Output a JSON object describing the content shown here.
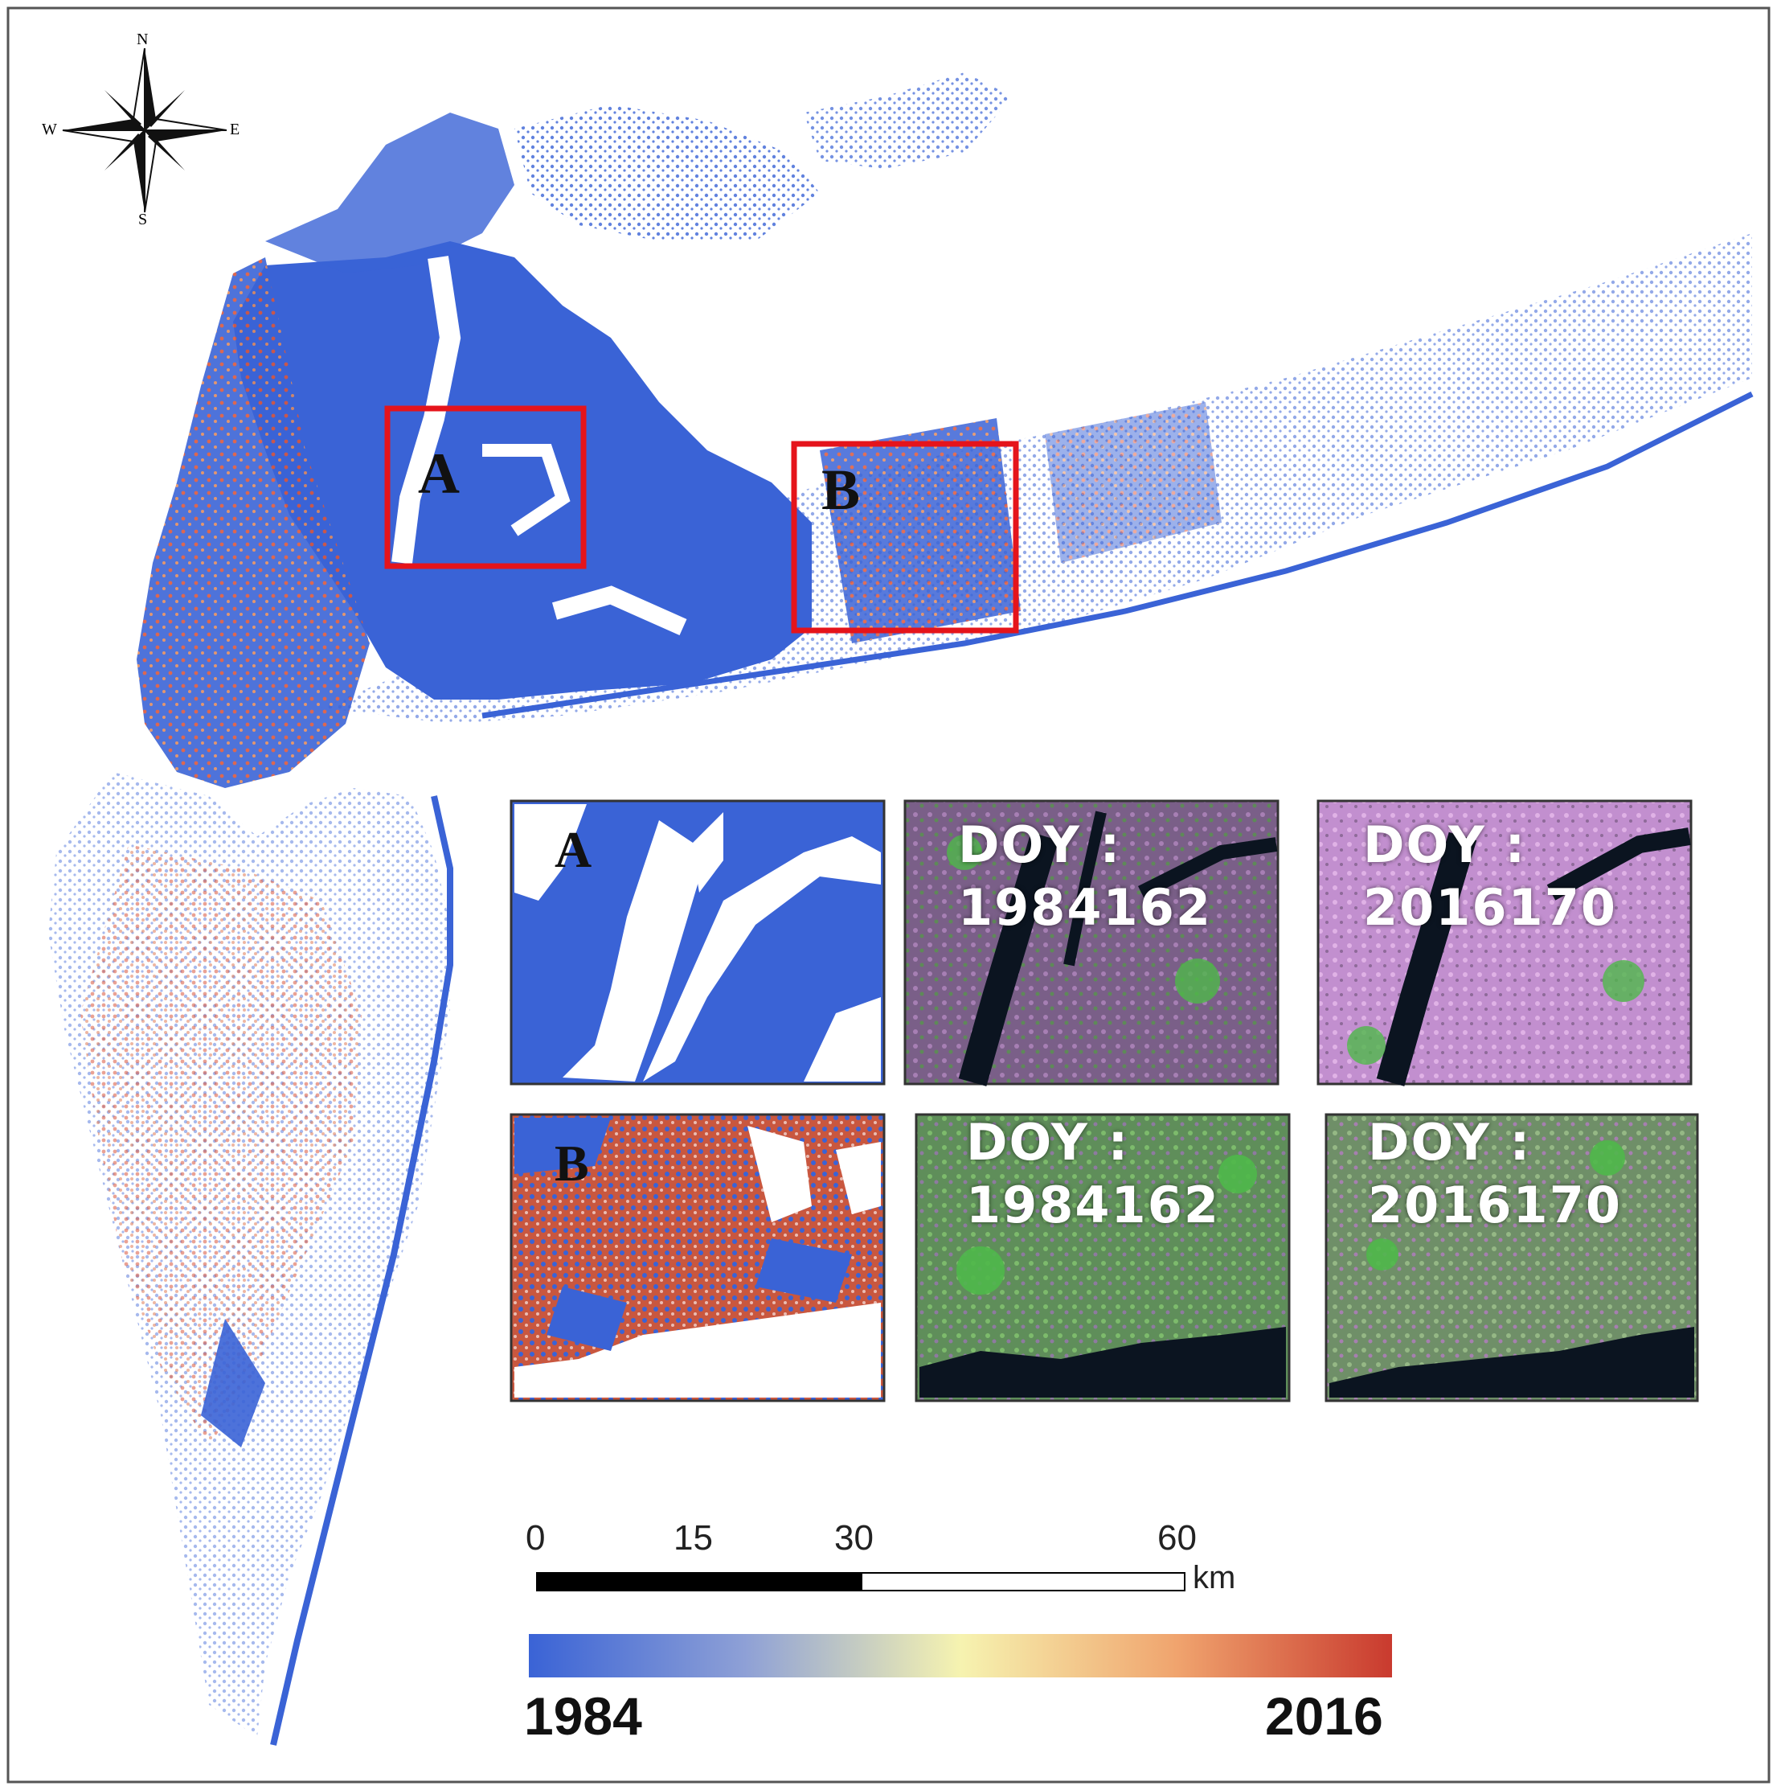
{
  "compass": {
    "north": "N",
    "south": "S",
    "east": "E",
    "west": "W"
  },
  "regions": {
    "a_label": "A",
    "b_label": "B",
    "box_color": "#e5141b"
  },
  "insets": {
    "a": {
      "label": "A",
      "early": {
        "doy_label": "DOY :",
        "doy_value": "1984162"
      },
      "late": {
        "doy_label": "DOY :",
        "doy_value": "2016170"
      }
    },
    "b": {
      "label": "B",
      "early": {
        "doy_label": "DOY :",
        "doy_value": "1984162"
      },
      "late": {
        "doy_label": "DOY :",
        "doy_value": "2016170"
      }
    }
  },
  "scale_bar": {
    "ticks": [
      "0",
      "15",
      "30",
      "60"
    ],
    "unit": "km"
  },
  "legend": {
    "min_label": "1984",
    "max_label": "2016",
    "colors": [
      "#3a63d6",
      "#8ea0d6",
      "#f6f3b0",
      "#f0a46e",
      "#c93a2e"
    ]
  },
  "colors": {
    "urban_early": "#3a63d6",
    "urban_late": "#d9563c",
    "vegetation": "#4fb84a",
    "urban_false_color": "#b57fc0",
    "water": "#0b1420"
  }
}
